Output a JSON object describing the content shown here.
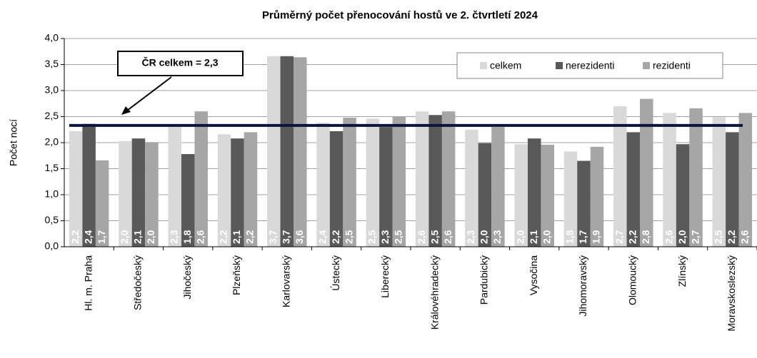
{
  "chart_data": {
    "type": "bar",
    "title": "Průměrný počet přenocování hostů  ve 2. čtvrtletí 2024",
    "y_label": "Počet nocí",
    "categories": [
      "Hl. m. Praha",
      "Středočeský",
      "Jihočeský",
      "Plzeňský",
      "Karlovarský",
      "Ústecký",
      "Liberecký",
      "Královéhradecký",
      "Pardubický",
      "Vysočina",
      "Jihomoravský",
      "Olomoucký",
      "Zlínský",
      "Moravskoslezský"
    ],
    "series": [
      {
        "name": "celkem",
        "color": "#d9d9d9",
        "values": [
          2.22,
          2.03,
          2.32,
          2.16,
          3.66,
          2.38,
          2.46,
          2.6,
          2.25,
          1.97,
          1.83,
          2.7,
          2.57,
          2.49
        ],
        "value_labels": [
          "2,2",
          "2,0",
          "2,3",
          "2,2",
          "3,7",
          "2,4",
          "2,5",
          "2,6",
          "2,3",
          "2,0",
          "1,8",
          "2,7",
          "2,6",
          "2,5"
        ]
      },
      {
        "name": "nerezidenti",
        "color": "#595959",
        "values": [
          2.36,
          2.08,
          1.78,
          2.08,
          3.66,
          2.22,
          2.3,
          2.53,
          1.99,
          2.08,
          1.65,
          2.2,
          1.97,
          2.2
        ],
        "value_labels": [
          "2,4",
          "2,1",
          "1,8",
          "2,1",
          "3,7",
          "2,2",
          "2,3",
          "2,5",
          "2,0",
          "2,1",
          "1,7",
          "2,2",
          "2,0",
          "2,2"
        ]
      },
      {
        "name": "rezidenti",
        "color": "#a6a6a6",
        "values": [
          1.66,
          2.01,
          2.6,
          2.2,
          3.64,
          2.48,
          2.5,
          2.6,
          2.3,
          1.96,
          1.92,
          2.84,
          2.66,
          2.57
        ],
        "value_labels": [
          "1,7",
          "2,0",
          "2,6",
          "2,2",
          "3,6",
          "2,5",
          "2,5",
          "2,6",
          "2,3",
          "2,0",
          "1,9",
          "2,8",
          "2,7",
          "2,6"
        ]
      }
    ],
    "reference_line": {
      "value": 2.33,
      "label": "ČR celkem = 2,3",
      "color": "#0d1340"
    },
    "ylim": [
      0,
      4
    ],
    "yticks": [
      {
        "value": 0,
        "label": "0,0"
      },
      {
        "value": 0.5,
        "label": "0,5"
      },
      {
        "value": 1,
        "label": "1,0"
      },
      {
        "value": 1.5,
        "label": "1,5"
      },
      {
        "value": 2,
        "label": "2,0"
      },
      {
        "value": 2.5,
        "label": "2,5"
      },
      {
        "value": 3,
        "label": "3,0"
      },
      {
        "value": 3.5,
        "label": "3,5"
      },
      {
        "value": 4,
        "label": "4,0"
      }
    ],
    "grid": true,
    "legend": "top-right"
  }
}
